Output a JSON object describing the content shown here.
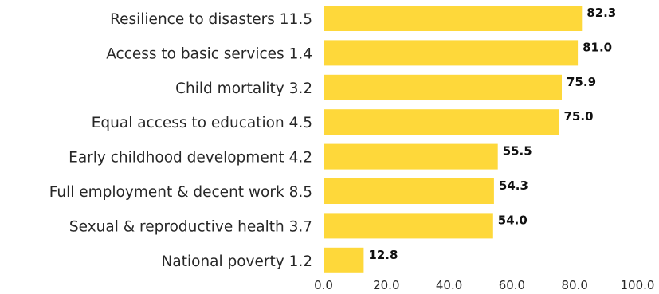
{
  "chart_data": {
    "type": "bar",
    "orientation": "horizontal",
    "title": "",
    "xlabel": "",
    "ylabel": "",
    "categories": [
      "Resilience to disasters 11.5",
      "Access to basic services 1.4",
      "Child mortality 3.2",
      "Equal access to education 4.5",
      "Early childhood development 4.2",
      "Full employment & decent work 8.5",
      "Sexual & reproductive health 3.7",
      "National poverty 1.2"
    ],
    "values": [
      82.3,
      81.0,
      75.9,
      75.0,
      55.5,
      54.3,
      54.0,
      12.8
    ],
    "value_labels": [
      "82.3",
      "81.0",
      "75.9",
      "75.0",
      "55.5",
      "54.3",
      "54.0",
      "12.8"
    ],
    "xlim": [
      0,
      100
    ],
    "xticks": [
      "0.0",
      "20.0",
      "40.0",
      "60.0",
      "80.0",
      "100.0"
    ],
    "grid": false,
    "legend": "none",
    "bar_color": "#FED83A",
    "text_color": "#262626"
  }
}
